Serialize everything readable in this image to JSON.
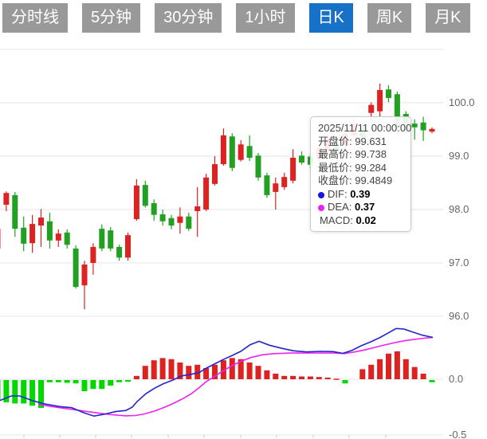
{
  "tabs": {
    "active_index": 4,
    "items": [
      {
        "label": "分时线"
      },
      {
        "label": "5分钟"
      },
      {
        "label": "30分钟"
      },
      {
        "label": "1小时"
      },
      {
        "label": "日K"
      },
      {
        "label": "周K"
      },
      {
        "label": "月K"
      }
    ]
  },
  "tooltip": {
    "datetime": "2025/11/11 00:00:00",
    "rows": [
      {
        "label": "开盘价",
        "value": "99.631"
      },
      {
        "label": "最高价",
        "value": "99.738"
      },
      {
        "label": "最低价",
        "value": "99.284"
      },
      {
        "label": "收盘价",
        "value": "99.4849"
      }
    ],
    "indicators": [
      {
        "label": "DIF",
        "value": "0.39",
        "bullet": "#1414e6"
      },
      {
        "label": "DEA",
        "value": "0.37",
        "bullet": "#ee22ee"
      },
      {
        "label": "MACD",
        "value": "0.02",
        "bullet": ""
      }
    ]
  },
  "colors": {
    "tab_bg": "#999999",
    "tab_active_bg": "#1771c6",
    "up_red": "#dd2222",
    "down_green": "#22a022",
    "macd_bar_green": "#00d800",
    "macd_bar_red": "#dd2222",
    "dif_line": "#2424cc",
    "dea_line": "#ee22ee",
    "grid": "#e5e5e5",
    "axis_label": "#666666"
  },
  "chart_data": {
    "type": "candlestick+macd",
    "price_axis": {
      "gridlines": [
        {
          "value": 101,
          "label": ""
        },
        {
          "value": 100,
          "label": "100.0"
        },
        {
          "value": 99,
          "label": "99.0"
        },
        {
          "value": 98,
          "label": "98.0"
        },
        {
          "value": 97,
          "label": "97.0"
        },
        {
          "value": 96,
          "label": "96.0"
        }
      ]
    },
    "macd_axis": {
      "gridlines": [
        {
          "value": 0,
          "label": "0.0"
        },
        {
          "value": -0.5,
          "label": "-0.5"
        }
      ]
    },
    "x_ticks": [
      30,
      75,
      120,
      165,
      211,
      256,
      302,
      347,
      393,
      438,
      484
    ],
    "candles_ohlc": [
      [
        97.27,
        97.66,
        97.19,
        97.64
      ],
      [
        98.09,
        98.34,
        97.97,
        98.31
      ],
      [
        98.27,
        98.33,
        97.49,
        97.64
      ],
      [
        97.66,
        97.87,
        97.22,
        97.36
      ],
      [
        97.37,
        97.9,
        97.19,
        97.73
      ],
      [
        97.7,
        98.01,
        97.3,
        97.85
      ],
      [
        97.78,
        97.94,
        97.27,
        97.42
      ],
      [
        97.42,
        97.63,
        97.3,
        97.55
      ],
      [
        97.57,
        97.63,
        97.27,
        97.34
      ],
      [
        97.27,
        97.33,
        96.52,
        96.55
      ],
      [
        96.58,
        97.04,
        96.13,
        96.97
      ],
      [
        97.0,
        97.37,
        96.78,
        97.3
      ],
      [
        97.64,
        97.72,
        97.22,
        97.27
      ],
      [
        97.61,
        97.67,
        97.22,
        97.27
      ],
      [
        97.3,
        97.34,
        97.04,
        97.1
      ],
      [
        97.1,
        97.57,
        97.04,
        97.52
      ],
      [
        97.82,
        98.57,
        97.79,
        98.45
      ],
      [
        98.46,
        98.54,
        98.04,
        98.07
      ],
      [
        98.12,
        98.19,
        97.79,
        97.9
      ],
      [
        97.91,
        98.0,
        97.7,
        97.78
      ],
      [
        97.84,
        97.9,
        97.63,
        97.7
      ],
      [
        97.75,
        98.04,
        97.55,
        97.87
      ],
      [
        97.87,
        97.94,
        97.6,
        97.64
      ],
      [
        97.97,
        98.42,
        97.49,
        98.06
      ],
      [
        98.0,
        98.67,
        97.97,
        98.6
      ],
      [
        98.48,
        99.0,
        98.45,
        98.85
      ],
      [
        98.85,
        99.52,
        98.82,
        99.39
      ],
      [
        99.37,
        99.43,
        98.72,
        98.78
      ],
      [
        98.93,
        99.3,
        98.9,
        99.22
      ],
      [
        99.19,
        99.39,
        98.91,
        98.97
      ],
      [
        99.01,
        99.06,
        98.54,
        98.6
      ],
      [
        98.64,
        98.69,
        98.22,
        98.27
      ],
      [
        98.33,
        98.6,
        98.0,
        98.49
      ],
      [
        98.42,
        98.69,
        98.37,
        98.61
      ],
      [
        98.54,
        99.13,
        98.49,
        98.97
      ],
      [
        99.01,
        99.09,
        98.84,
        98.88
      ],
      [
        98.99,
        99.04,
        98.76,
        98.84
      ],
      [
        98.95,
        99.21,
        98.88,
        99.15
      ],
      [
        99.12,
        99.39,
        99.06,
        99.3
      ],
      [
        99.24,
        99.3,
        98.99,
        99.06
      ],
      [
        99.21,
        99.51,
        99.15,
        99.42
      ],
      [
        99.39,
        99.69,
        99.33,
        99.6
      ],
      [
        99.54,
        99.61,
        99.28,
        99.36
      ],
      [
        99.81,
        100.01,
        99.57,
        99.96
      ],
      [
        99.84,
        100.36,
        99.73,
        100.24
      ],
      [
        100.25,
        100.33,
        100.01,
        100.09
      ],
      [
        100.16,
        100.21,
        99.36,
        99.54
      ],
      [
        99.79,
        99.84,
        99.42,
        99.51
      ],
      [
        99.61,
        99.69,
        99.31,
        99.54
      ],
      [
        99.631,
        99.738,
        99.284,
        99.4849
      ],
      [
        99.46,
        99.54,
        99.43,
        99.51
      ]
    ],
    "macd_histogram": [
      -0.18,
      -0.2,
      -0.21,
      -0.21,
      -0.23,
      -0.25,
      -0.02,
      -0.02,
      -0.025,
      -0.03,
      -0.1,
      -0.08,
      -0.08,
      -0.05,
      -0.02,
      -0.015,
      0.03,
      0.12,
      0.17,
      0.19,
      0.18,
      0.15,
      0.12,
      0.13,
      0.1,
      0.13,
      0.17,
      0.19,
      0.18,
      0.15,
      0.12,
      0.08,
      0.05,
      0.03,
      0.03,
      0.025,
      0.025,
      0.02,
      0.015,
      0.005,
      -0.03,
      0.0,
      0.09,
      0.13,
      0.18,
      0.23,
      0.25,
      0.18,
      0.11,
      0.05,
      -0.02
    ],
    "dif_line": [
      [
        0,
        -0.19
      ],
      [
        14,
        -0.15
      ],
      [
        25,
        -0.15
      ],
      [
        40,
        -0.19
      ],
      [
        55,
        -0.22
      ],
      [
        75,
        -0.245
      ],
      [
        90,
        -0.255
      ],
      [
        105,
        -0.3
      ],
      [
        118,
        -0.33
      ],
      [
        130,
        -0.315
      ],
      [
        145,
        -0.29
      ],
      [
        158,
        -0.28
      ],
      [
        166,
        -0.25
      ],
      [
        172,
        -0.2
      ],
      [
        183,
        -0.13
      ],
      [
        194,
        -0.08
      ],
      [
        205,
        -0.04
      ],
      [
        216,
        -0.01
      ],
      [
        228,
        0.03
      ],
      [
        240,
        0.045
      ],
      [
        250,
        0.06
      ],
      [
        259,
        0.1
      ],
      [
        270,
        0.14
      ],
      [
        281,
        0.18
      ],
      [
        292,
        0.215
      ],
      [
        302,
        0.25
      ],
      [
        314,
        0.31
      ],
      [
        325,
        0.34
      ],
      [
        338,
        0.305
      ],
      [
        352,
        0.28
      ],
      [
        368,
        0.255
      ],
      [
        385,
        0.245
      ],
      [
        402,
        0.25
      ],
      [
        418,
        0.248
      ],
      [
        430,
        0.232
      ],
      [
        442,
        0.26
      ],
      [
        453,
        0.3
      ],
      [
        465,
        0.335
      ],
      [
        477,
        0.375
      ],
      [
        487,
        0.415
      ],
      [
        497,
        0.455
      ],
      [
        507,
        0.45
      ],
      [
        517,
        0.425
      ],
      [
        530,
        0.395
      ],
      [
        543,
        0.375
      ]
    ],
    "dea_line": [
      [
        48,
        -0.225
      ],
      [
        65,
        -0.245
      ],
      [
        80,
        -0.26
      ],
      [
        95,
        -0.275
      ],
      [
        110,
        -0.29
      ],
      [
        125,
        -0.305
      ],
      [
        140,
        -0.318
      ],
      [
        158,
        -0.328
      ],
      [
        170,
        -0.325
      ],
      [
        182,
        -0.31
      ],
      [
        194,
        -0.285
      ],
      [
        206,
        -0.253
      ],
      [
        218,
        -0.215
      ],
      [
        230,
        -0.172
      ],
      [
        240,
        -0.13
      ],
      [
        250,
        -0.075
      ],
      [
        259,
        -0.02
      ],
      [
        270,
        0.03
      ],
      [
        281,
        0.08
      ],
      [
        292,
        0.125
      ],
      [
        302,
        0.16
      ],
      [
        315,
        0.195
      ],
      [
        330,
        0.22
      ],
      [
        345,
        0.23
      ],
      [
        365,
        0.235
      ],
      [
        385,
        0.235
      ],
      [
        405,
        0.235
      ],
      [
        420,
        0.235
      ],
      [
        432,
        0.23
      ],
      [
        445,
        0.245
      ],
      [
        457,
        0.262
      ],
      [
        470,
        0.285
      ],
      [
        483,
        0.308
      ],
      [
        495,
        0.328
      ],
      [
        508,
        0.346
      ],
      [
        520,
        0.358
      ],
      [
        532,
        0.368
      ],
      [
        543,
        0.374
      ]
    ]
  }
}
